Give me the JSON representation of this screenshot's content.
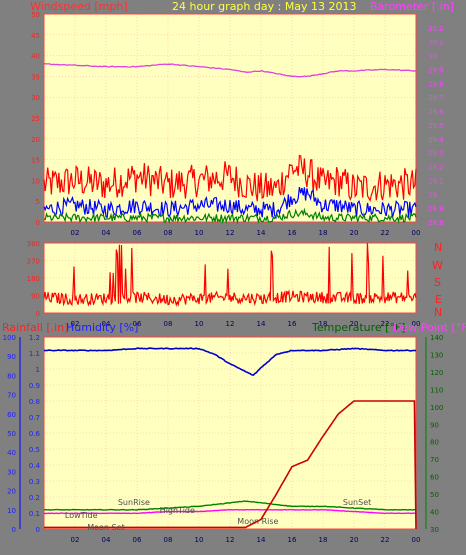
{
  "header": {
    "left_label": "Windspeed [mph]",
    "center_title": "24 hour graph day : May 13 2013",
    "right_label": "Barometer [.in]"
  },
  "wind_dir_letters": [
    "N",
    "W",
    "S",
    "E",
    "N"
  ],
  "bottom_header": {
    "rain_label": "Rainfall [.in]",
    "humidity_label": "Humidity [%]",
    "temp_label": "Temperature [°F]",
    "dew_label": "Dew Point [°F]"
  },
  "annotations": [
    {
      "text": "SunRise",
      "hour": 5.8
    },
    {
      "text": "LowTide",
      "hour": 2.4
    },
    {
      "text": "Moon Set",
      "hour": 4.0
    },
    {
      "text": "HighTide",
      "hour": 8.6
    },
    {
      "text": "Moon Rise",
      "hour": 13.8
    },
    {
      "text": "SunSet",
      "hour": 20.2
    }
  ],
  "colors": {
    "plot_bg": "#ffffc0",
    "frame_bg": "#808080",
    "wind_gust": "#ff0000",
    "wind_avg": "#0000ff",
    "wind_low": "#008000",
    "barometer": "#e040e0",
    "humidity": "#0000cc",
    "temperature": "#008000",
    "dewpoint": "#ff00ff",
    "rainfall": "#cc0000"
  },
  "chart_data": [
    {
      "type": "line",
      "title": "24 hour graph day : May 13 2013",
      "xlabel": "",
      "ylabel": "Windspeed [mph]",
      "y2label": "Barometer [.in]",
      "x_ticks": [
        "02",
        "04",
        "06",
        "08",
        "10",
        "12",
        "14",
        "16",
        "18",
        "20",
        "22",
        "00"
      ],
      "ylim": [
        0,
        50
      ],
      "y_ticks": [
        0,
        5,
        10,
        15,
        20,
        25,
        30,
        35,
        40,
        45,
        50
      ],
      "y2lim": [
        28.8,
        30.3
      ],
      "y2_ticks": [
        "28.8",
        "28.9",
        "29",
        "29.1",
        "29.2",
        "29.3",
        "29.4",
        "29.5",
        "29.6",
        "29.7",
        "29.8",
        "29.9",
        "30",
        "30.1",
        "30.2"
      ],
      "grid": true,
      "series": [
        {
          "name": "Windspeed gust",
          "axis": "left",
          "x": [
            0,
            2,
            4,
            6,
            8,
            10,
            12,
            13,
            14,
            15,
            16,
            17,
            18,
            19,
            20,
            22,
            24
          ],
          "y": [
            9,
            10,
            9,
            11,
            9,
            10,
            11,
            9,
            8,
            8,
            13,
            12,
            9,
            10,
            8,
            9,
            9
          ]
        },
        {
          "name": "Windspeed average",
          "axis": "left",
          "x": [
            0,
            2,
            4,
            6,
            8,
            10,
            12,
            13,
            14,
            15,
            16,
            17,
            18,
            19,
            20,
            22,
            24
          ],
          "y": [
            3,
            4,
            3,
            4,
            3,
            4,
            4,
            3,
            3,
            3,
            6,
            7,
            4,
            4,
            3,
            3,
            3
          ]
        },
        {
          "name": "Windspeed low",
          "axis": "left",
          "x": [
            0,
            2,
            4,
            6,
            8,
            10,
            12,
            13,
            14,
            15,
            16,
            17,
            18,
            19,
            20,
            22,
            24
          ],
          "y": [
            1,
            1,
            1,
            1,
            1,
            1,
            1,
            1,
            1,
            1,
            2,
            2,
            1,
            1,
            1,
            1,
            1
          ]
        },
        {
          "name": "Barometer",
          "axis": "right",
          "x": [
            0,
            2,
            4,
            6,
            8,
            10,
            12,
            13,
            14,
            15,
            16,
            17,
            18,
            19,
            20,
            22,
            24
          ],
          "y": [
            29.94,
            29.93,
            29.92,
            29.92,
            29.94,
            29.92,
            29.9,
            29.88,
            29.89,
            29.87,
            29.85,
            29.85,
            29.87,
            29.89,
            29.89,
            29.9,
            29.89
          ]
        }
      ]
    },
    {
      "type": "line",
      "ylabel": "Wind direction",
      "x_ticks": [
        "02",
        "04",
        "06",
        "08",
        "10",
        "12",
        "14",
        "16",
        "18",
        "20",
        "22",
        "00"
      ],
      "ylim": [
        0,
        360
      ],
      "y_ticks": [
        0,
        90,
        180,
        270,
        360
      ],
      "grid": true,
      "series": [
        {
          "name": "Wind direction",
          "x": [
            0,
            2,
            4,
            6,
            8,
            10,
            12,
            14,
            16,
            18,
            20,
            22,
            24
          ],
          "y": [
            80,
            70,
            75,
            80,
            70,
            75,
            80,
            75,
            85,
            80,
            75,
            80,
            80
          ]
        }
      ]
    },
    {
      "type": "line",
      "ylabel": "Rainfall [.in]",
      "y_label_2": "Humidity [%]",
      "y2label": "Temperature [°F]",
      "y3label": "Dew Point [°F]",
      "x_ticks": [
        "02",
        "04",
        "06",
        "08",
        "10",
        "12",
        "14",
        "16",
        "18",
        "20",
        "22",
        "00"
      ],
      "ylim": [
        0,
        1.2
      ],
      "y_ticks": [
        "0",
        "0.1",
        "0.2",
        "0.3",
        "0.4",
        "0.5",
        "0.6",
        "0.7",
        "0.8",
        "0.9",
        "1",
        "1.1",
        "1.2"
      ],
      "y_humidity_ticks": [
        0,
        10,
        20,
        30,
        40,
        50,
        60,
        70,
        80,
        90,
        100
      ],
      "humidity_lim": [
        0,
        100
      ],
      "y2lim": [
        30,
        140
      ],
      "y2_ticks": [
        30,
        40,
        50,
        60,
        70,
        80,
        90,
        100,
        110,
        120,
        130,
        140
      ],
      "grid": true,
      "series": [
        {
          "name": "Humidity",
          "axis": "humidity",
          "x": [
            0,
            2,
            4,
            6,
            8,
            10,
            11,
            12,
            13,
            13.5,
            14,
            15,
            16,
            18,
            20,
            22,
            24
          ],
          "y": [
            93,
            93,
            93,
            94,
            94,
            94,
            91,
            86,
            82,
            80,
            84,
            91,
            93,
            93,
            94,
            93,
            93
          ]
        },
        {
          "name": "Temperature",
          "axis": "right",
          "x": [
            0,
            2,
            4,
            6,
            8,
            10,
            12,
            13,
            14,
            16,
            18,
            20,
            22,
            24
          ],
          "y": [
            41,
            41,
            41,
            41,
            42,
            43,
            45,
            46,
            45,
            43,
            43,
            42,
            41,
            41
          ]
        },
        {
          "name": "Dew Point",
          "axis": "right",
          "x": [
            0,
            2,
            4,
            6,
            8,
            10,
            12,
            13,
            14,
            16,
            18,
            20,
            22,
            24
          ],
          "y": [
            39,
            39,
            39,
            39,
            40,
            40,
            41,
            41,
            41,
            41,
            41,
            40,
            39,
            39
          ]
        },
        {
          "name": "Rainfall",
          "axis": "left",
          "x": [
            0,
            2,
            4,
            6,
            8,
            10,
            12,
            13,
            14,
            15,
            16,
            17,
            18,
            19,
            20,
            22,
            23.9,
            24
          ],
          "y": [
            0.01,
            0.01,
            0.01,
            0.01,
            0.01,
            0.01,
            0.01,
            0.01,
            0.06,
            0.22,
            0.39,
            0.43,
            0.58,
            0.72,
            0.8,
            0.8,
            0.8,
            0.0
          ]
        }
      ]
    }
  ]
}
